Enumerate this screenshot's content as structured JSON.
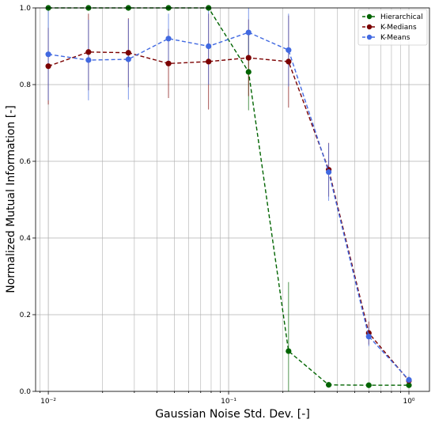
{
  "chart_data": {
    "type": "line",
    "xscale": "log",
    "xlabel": "Gaussian Noise Std. Dev. [-]",
    "ylabel": "Normalized Mutual Information [-]",
    "xlim": [
      0.0085,
      1.3
    ],
    "ylim": [
      0.0,
      1.0
    ],
    "grid": true,
    "legend_placement": "top-right",
    "x": [
      0.01,
      0.0167,
      0.0278,
      0.0464,
      0.0774,
      0.129,
      0.215,
      0.359,
      0.599,
      1.0
    ],
    "x_tick_labels": [
      "10⁻²",
      "10⁻¹",
      "10⁰"
    ],
    "y_tick_labels": [
      "0.0",
      "0.2",
      "0.4",
      "0.6",
      "0.8",
      "1.0"
    ],
    "series": [
      {
        "name": "Hierarchical",
        "color": "#006400",
        "values": [
          1.0,
          1.0,
          1.0,
          1.0,
          1.0,
          0.833,
          0.105,
          0.017,
          0.016,
          0.016
        ],
        "err": [
          0,
          0,
          0,
          0,
          0,
          0.1,
          0.18,
          0,
          0,
          0
        ]
      },
      {
        "name": "K-Medians",
        "color": "#7b0000",
        "values": [
          0.848,
          0.885,
          0.883,
          0.855,
          0.86,
          0.87,
          0.86,
          0.578,
          0.152,
          0.028
        ],
        "err": [
          0.1,
          0.1,
          0.09,
          0.09,
          0.125,
          0.1,
          0.12,
          0.07,
          0.03,
          0.01
        ]
      },
      {
        "name": "K-Means",
        "color": "#4169e1",
        "values": [
          0.879,
          0.864,
          0.866,
          0.92,
          0.9,
          0.936,
          0.89,
          0.572,
          0.143,
          0.03
        ],
        "err": [
          0.12,
          0.105,
          0.105,
          0.065,
          0.1,
          0.07,
          0.095,
          0.075,
          0.025,
          0.01
        ]
      }
    ]
  }
}
